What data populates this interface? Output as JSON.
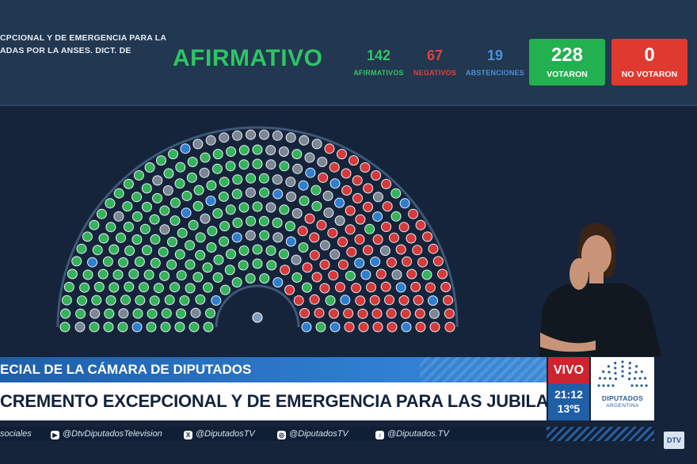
{
  "header": {
    "motion_line1": "CPCIONAL Y DE EMERGENCIA PARA LAS",
    "motion_line2": "ADAS POR LA ANSES. DICT. DE",
    "result": "AFIRMATIVO",
    "counts": [
      {
        "value": "142",
        "label": "AFIRMATIVOS",
        "color": "#2ec563"
      },
      {
        "value": "67",
        "label": "NEGATIVOS",
        "color": "#e3403d"
      },
      {
        "value": "19",
        "label": "ABSTENCIONES",
        "color": "#4a8fdc"
      }
    ],
    "totals": [
      {
        "value": "228",
        "label": "VOTARON",
        "color": "#23b04f"
      },
      {
        "value": "0",
        "label": "NO VOTARON",
        "color": "#e0392f"
      }
    ]
  },
  "chamber": {
    "colors": {
      "affirmative": "#35b35a",
      "negative": "#d63a3a",
      "abstention": "#2f7fd0",
      "absent": "#7d8794",
      "arc": "#3e5878",
      "seat_outline": "#e8eef5"
    }
  },
  "lower_third": {
    "title": "ECIAL DE LA CÁMARA DE DIPUTADOS",
    "subtitle": "CREMENTO EXCEPCIONAL Y DE EMERGENCIA PARA LAS JUBILACIONES Y PENSIONES",
    "live": "VIVO",
    "time": "21:12",
    "temperature": "13º5",
    "logo_name": "DIPUTADOS",
    "logo_country": "ARGENTINA"
  },
  "social": [
    {
      "text": "sociales",
      "icon": ""
    },
    {
      "text": "@DtvDiputadosTelevision",
      "icon": "youtube-icon"
    },
    {
      "text": "@DiputadosTV",
      "icon": "x-icon"
    },
    {
      "text": "@DiputadosTV",
      "icon": "instagram-icon"
    },
    {
      "text": "@Diputados.TV",
      "icon": "tiktok-icon"
    }
  ],
  "corner_logo": "DTV"
}
